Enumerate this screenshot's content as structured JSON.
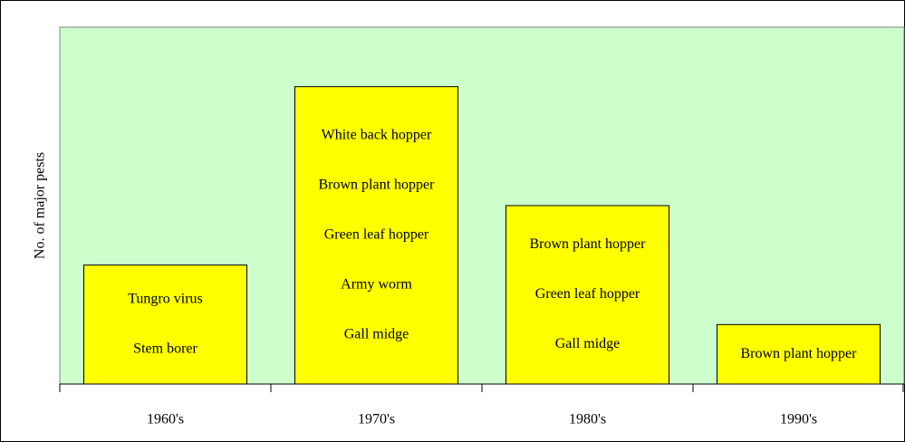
{
  "chart_data": {
    "type": "bar",
    "ylabel": "No. of major pests",
    "categories": [
      "1960's",
      "1970's",
      "1980's",
      "1990's"
    ],
    "values": [
      2,
      5,
      3,
      1
    ],
    "bar_labels": [
      [
        "Tungro virus",
        "Stem borer"
      ],
      [
        "White back hopper",
        "Brown plant hopper",
        "Green leaf hopper",
        "Army worm",
        "Gall midge"
      ],
      [
        "Brown plant hopper",
        "Green leaf hopper",
        "Gall midge"
      ],
      [
        "Brown plant hopper"
      ]
    ],
    "color": "#ffff00",
    "plot_background": "#ccffcc",
    "ylim": [
      0,
      6
    ]
  }
}
